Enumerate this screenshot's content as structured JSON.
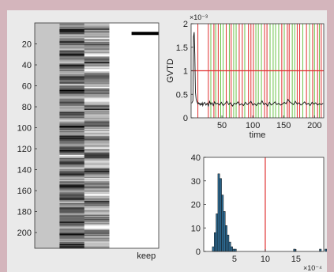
{
  "chart_data": [
    {
      "type": "heatmap",
      "ytick_labels": [
        "20",
        "40",
        "60",
        "80",
        "100",
        "120",
        "140",
        "160",
        "180",
        "200"
      ],
      "yticks": [
        20,
        40,
        60,
        80,
        100,
        120,
        140,
        160,
        180,
        200
      ],
      "ylim": [
        0,
        215
      ],
      "column_labels": [
        "",
        "",
        "",
        "",
        "keep"
      ],
      "keep_marker_row": 10
    },
    {
      "type": "line",
      "ylabel": "GVTD",
      "xlabel": "time",
      "y_exponent": "×10⁻³",
      "xlim": [
        0,
        215
      ],
      "ylim": [
        0,
        2
      ],
      "xtick_labels": [
        "50",
        "100",
        "150",
        "200"
      ],
      "xticks": [
        50,
        100,
        150,
        200
      ],
      "ytick_labels": [
        "0",
        "0.5",
        "1",
        "1.5",
        "2"
      ],
      "yticks": [
        0,
        0.5,
        1,
        1.5,
        2
      ],
      "threshold": 1.0,
      "series": [
        {
          "x": [
            1,
            2,
            3,
            4,
            5,
            6,
            7,
            8,
            9,
            10,
            11,
            12,
            13,
            14,
            15,
            16,
            17,
            18,
            19,
            20,
            22,
            24,
            26,
            28,
            30,
            32,
            34,
            36,
            38,
            40,
            43,
            46,
            49,
            52,
            55,
            58,
            61,
            64,
            67,
            70,
            73,
            76,
            79,
            82,
            85,
            88,
            91,
            94,
            97,
            100,
            103,
            106,
            109,
            112,
            115,
            118,
            121,
            124,
            127,
            130,
            133,
            136,
            139,
            142,
            145,
            148,
            151,
            154,
            157,
            160,
            163,
            166,
            169,
            172,
            175,
            178,
            181,
            184,
            187,
            190,
            193,
            196,
            199,
            202,
            205,
            208,
            211,
            214
          ],
          "values": [
            0.31,
            0.34,
            0.36,
            1.72,
            1.82,
            1.35,
            0.55,
            0.41,
            0.36,
            0.33,
            0.3,
            0.32,
            0.29,
            0.31,
            0.27,
            0.3,
            0.28,
            0.32,
            0.26,
            0.3,
            0.33,
            0.27,
            0.31,
            0.25,
            0.35,
            0.28,
            0.32,
            0.26,
            0.34,
            0.29,
            0.31,
            0.27,
            0.33,
            0.26,
            0.3,
            0.35,
            0.28,
            0.32,
            0.25,
            0.31,
            0.29,
            0.34,
            0.27,
            0.3,
            0.26,
            0.33,
            0.28,
            0.31,
            0.35,
            0.27,
            0.3,
            0.26,
            0.32,
            0.29,
            0.36,
            0.28,
            0.31,
            0.25,
            0.33,
            0.27,
            0.3,
            0.34,
            0.28,
            0.31,
            0.27,
            0.29,
            0.33,
            0.3,
            0.39,
            0.34,
            0.31,
            0.28,
            0.35,
            0.29,
            0.32,
            0.27,
            0.3,
            0.34,
            0.28,
            0.31,
            0.26,
            0.33,
            0.29,
            0.32,
            0.27,
            0.3,
            0.28,
            0.31
          ]
        }
      ],
      "red_vlines": [
        11,
        28,
        37,
        44,
        57,
        65,
        78,
        83,
        93,
        97,
        101,
        119,
        123,
        147,
        156,
        159,
        172,
        176,
        187,
        197,
        205,
        211
      ],
      "green_vlines": [
        32,
        40,
        48,
        52,
        62,
        69,
        73,
        87,
        105,
        109,
        114,
        128,
        133,
        137,
        142,
        151,
        164,
        168,
        181,
        192,
        200,
        208
      ]
    },
    {
      "type": "bar",
      "ylim": [
        0,
        40
      ],
      "xlim": [
        0,
        19.5
      ],
      "x_exponent": "×10⁻⁴",
      "xtick_labels": [
        "5",
        "10",
        "15"
      ],
      "xticks": [
        5,
        10,
        15
      ],
      "ytick_labels": [
        "0",
        "10",
        "20",
        "30",
        "40"
      ],
      "yticks": [
        0,
        10,
        20,
        30,
        40
      ],
      "bin_width": 0.3,
      "bin_start": 1.4,
      "values": [
        2,
        8,
        16,
        33,
        31,
        24,
        17,
        11,
        7,
        4,
        2,
        1,
        1,
        0,
        0,
        0,
        0,
        0,
        0,
        0,
        0,
        0,
        0,
        0,
        0,
        0,
        0,
        0,
        0,
        0,
        0,
        0,
        0,
        0,
        0,
        0,
        0,
        0,
        0,
        0,
        0,
        0,
        0,
        0,
        1,
        0,
        0,
        0,
        0,
        0,
        0,
        0,
        0,
        0,
        0,
        0,
        0,
        0,
        1,
        0,
        0,
        1,
        0,
        0,
        0,
        0,
        0,
        0,
        1
      ],
      "threshold": 10,
      "bar_color": "#2d6b93"
    }
  ]
}
